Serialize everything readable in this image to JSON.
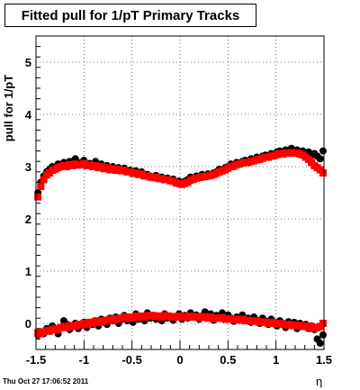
{
  "title": "Fitted pull for 1/pT  Primary Tracks",
  "datestamp": "Thu Oct 27 17:06:52 2011",
  "chart_data": {
    "type": "scatter",
    "title": "Fitted pull for 1/pT  Primary Tracks",
    "xlabel": "η",
    "ylabel": "pull for 1/pT",
    "xlim": [
      -1.5,
      1.5
    ],
    "ylim": [
      -0.5,
      5.5
    ],
    "grid": true,
    "x_ticks": [
      -1.5,
      -1,
      -0.5,
      0,
      0.5,
      1,
      1.5
    ],
    "x_tick_labels": [
      "-1.5",
      "-1",
      "-0.5",
      "0",
      "0.5",
      "1",
      "1.5"
    ],
    "y_ticks": [
      0,
      1,
      2,
      3,
      4,
      5
    ],
    "y_tick_labels": [
      "0",
      "1",
      "2",
      "3",
      "4",
      "5"
    ],
    "series_colors": [
      "#000000",
      "#ff0000"
    ],
    "series": [
      {
        "color": "#000000",
        "x": [
          -1.48,
          -1.45,
          -1.42,
          -1.39,
          -1.36,
          -1.33,
          -1.3,
          -1.27,
          -1.24,
          -1.21,
          -1.18,
          -1.15,
          -1.12,
          -1.09,
          -1.06,
          -1.03,
          -1.0,
          -0.97,
          -0.94,
          -0.91,
          -0.88,
          -0.85,
          -0.82,
          -0.79,
          -0.76,
          -0.73,
          -0.7,
          -0.67,
          -0.64,
          -0.61,
          -0.58,
          -0.55,
          -0.52,
          -0.49,
          -0.46,
          -0.43,
          -0.4,
          -0.37,
          -0.34,
          -0.31,
          -0.28,
          -0.25,
          -0.22,
          -0.19,
          -0.16,
          -0.13,
          -0.1,
          -0.07,
          -0.04,
          -0.01,
          0.02,
          0.05,
          0.08,
          0.11,
          0.14,
          0.17,
          0.2,
          0.23,
          0.26,
          0.29,
          0.32,
          0.35,
          0.38,
          0.41,
          0.44,
          0.47,
          0.5,
          0.53,
          0.56,
          0.59,
          0.62,
          0.65,
          0.68,
          0.71,
          0.74,
          0.77,
          0.8,
          0.83,
          0.86,
          0.89,
          0.92,
          0.95,
          0.98,
          1.01,
          1.04,
          1.07,
          1.1,
          1.13,
          1.16,
          1.19,
          1.22,
          1.25,
          1.28,
          1.31,
          1.34,
          1.37,
          1.4,
          1.43,
          1.46,
          1.49
        ],
        "y": [
          2.5,
          2.7,
          2.82,
          2.9,
          2.95,
          3.0,
          2.98,
          3.05,
          3.02,
          3.08,
          3.05,
          3.1,
          3.04,
          3.15,
          3.06,
          3.08,
          3.12,
          3.04,
          3.06,
          3.02,
          3.1,
          3.0,
          3.05,
          2.98,
          3.02,
          2.96,
          3.0,
          2.95,
          2.98,
          2.94,
          2.97,
          2.9,
          2.93,
          2.88,
          2.92,
          2.86,
          2.9,
          2.84,
          2.85,
          2.82,
          2.8,
          2.83,
          2.78,
          2.8,
          2.76,
          2.78,
          2.74,
          2.76,
          2.7,
          2.72,
          2.68,
          2.72,
          2.75,
          2.8,
          2.78,
          2.82,
          2.8,
          2.85,
          2.82,
          2.86,
          2.84,
          2.88,
          2.9,
          2.95,
          2.92,
          2.98,
          3.0,
          3.05,
          3.02,
          3.08,
          3.05,
          3.1,
          3.12,
          3.08,
          3.15,
          3.12,
          3.18,
          3.15,
          3.2,
          3.22,
          3.18,
          3.25,
          3.22,
          3.28,
          3.3,
          3.26,
          3.32,
          3.28,
          3.35,
          3.3,
          3.32,
          3.28,
          3.3,
          3.25,
          3.28,
          3.22,
          3.25,
          3.2,
          3.15,
          3.3
        ],
        "y_low": [
          -0.22,
          -0.18,
          -0.2,
          -0.1,
          -0.15,
          -0.05,
          -0.12,
          -0.2,
          -0.08,
          0.05,
          -0.02,
          -0.12,
          -0.06,
          0.0,
          -0.1,
          -0.04,
          0.02,
          -0.08,
          0.0,
          -0.02,
          0.05,
          -0.05,
          0.08,
          0.02,
          -0.02,
          0.1,
          0.05,
          0.12,
          0.0,
          0.08,
          0.15,
          0.05,
          0.1,
          0.02,
          0.18,
          0.08,
          0.12,
          0.05,
          0.2,
          0.1,
          0.15,
          0.08,
          0.12,
          0.05,
          0.18,
          0.1,
          0.14,
          0.06,
          0.12,
          0.18,
          0.08,
          0.15,
          0.1,
          0.2,
          0.12,
          0.16,
          0.08,
          0.14,
          0.22,
          0.1,
          0.18,
          0.06,
          0.15,
          0.12,
          0.2,
          0.08,
          0.16,
          0.1,
          0.04,
          0.12,
          0.08,
          0.16,
          0.05,
          0.1,
          0.02,
          0.12,
          0.06,
          0.0,
          0.1,
          0.04,
          -0.02,
          0.08,
          0.02,
          -0.05,
          0.05,
          0.0,
          -0.08,
          0.03,
          -0.04,
          0.02,
          -0.1,
          0.0,
          -0.06,
          -0.02,
          -0.1,
          -0.05,
          -0.12,
          -0.3,
          -0.38,
          -0.22
        ]
      },
      {
        "color": "#ff0000",
        "x": [
          -1.48,
          -1.45,
          -1.42,
          -1.39,
          -1.36,
          -1.33,
          -1.3,
          -1.27,
          -1.24,
          -1.21,
          -1.18,
          -1.15,
          -1.12,
          -1.09,
          -1.06,
          -1.03,
          -1.0,
          -0.97,
          -0.94,
          -0.91,
          -0.88,
          -0.85,
          -0.82,
          -0.79,
          -0.76,
          -0.73,
          -0.7,
          -0.67,
          -0.64,
          -0.61,
          -0.58,
          -0.55,
          -0.52,
          -0.49,
          -0.46,
          -0.43,
          -0.4,
          -0.37,
          -0.34,
          -0.31,
          -0.28,
          -0.25,
          -0.22,
          -0.19,
          -0.16,
          -0.13,
          -0.1,
          -0.07,
          -0.04,
          -0.01,
          0.02,
          0.05,
          0.08,
          0.11,
          0.14,
          0.17,
          0.2,
          0.23,
          0.26,
          0.29,
          0.32,
          0.35,
          0.38,
          0.41,
          0.44,
          0.47,
          0.5,
          0.53,
          0.56,
          0.59,
          0.62,
          0.65,
          0.68,
          0.71,
          0.74,
          0.77,
          0.8,
          0.83,
          0.86,
          0.89,
          0.92,
          0.95,
          0.98,
          1.01,
          1.04,
          1.07,
          1.1,
          1.13,
          1.16,
          1.19,
          1.22,
          1.25,
          1.28,
          1.31,
          1.34,
          1.37,
          1.4,
          1.43,
          1.46,
          1.49
        ],
        "y": [
          2.42,
          2.62,
          2.75,
          2.84,
          2.88,
          2.93,
          2.95,
          2.98,
          3.0,
          3.02,
          3.0,
          3.04,
          3.02,
          3.05,
          3.03,
          3.04,
          3.06,
          3.02,
          3.03,
          3.0,
          3.02,
          2.98,
          3.0,
          2.96,
          2.98,
          2.94,
          2.96,
          2.93,
          2.95,
          2.92,
          2.93,
          2.9,
          2.9,
          2.87,
          2.88,
          2.85,
          2.86,
          2.82,
          2.82,
          2.8,
          2.79,
          2.79,
          2.77,
          2.77,
          2.75,
          2.75,
          2.73,
          2.72,
          2.69,
          2.68,
          2.66,
          2.68,
          2.7,
          2.74,
          2.76,
          2.78,
          2.79,
          2.8,
          2.81,
          2.82,
          2.83,
          2.85,
          2.87,
          2.9,
          2.92,
          2.94,
          2.97,
          3.0,
          3.01,
          3.04,
          3.05,
          3.07,
          3.08,
          3.08,
          3.1,
          3.11,
          3.13,
          3.14,
          3.16,
          3.18,
          3.18,
          3.2,
          3.21,
          3.23,
          3.25,
          3.24,
          3.26,
          3.26,
          3.27,
          3.26,
          3.26,
          3.24,
          3.22,
          3.18,
          3.14,
          3.08,
          3.02,
          2.98,
          2.94,
          2.88
        ],
        "y_low": [
          -0.18,
          -0.2,
          -0.16,
          -0.14,
          -0.15,
          -0.12,
          -0.1,
          -0.12,
          -0.08,
          -0.06,
          -0.08,
          -0.05,
          -0.04,
          -0.06,
          -0.02,
          -0.03,
          0.0,
          -0.02,
          0.02,
          0.0,
          0.04,
          0.02,
          0.05,
          0.04,
          0.06,
          0.08,
          0.06,
          0.09,
          0.08,
          0.1,
          0.12,
          0.1,
          0.12,
          0.11,
          0.14,
          0.12,
          0.14,
          0.12,
          0.15,
          0.14,
          0.15,
          0.13,
          0.14,
          0.12,
          0.15,
          0.14,
          0.13,
          0.12,
          0.13,
          0.14,
          0.12,
          0.13,
          0.12,
          0.14,
          0.12,
          0.13,
          0.11,
          0.12,
          0.13,
          0.1,
          0.12,
          0.09,
          0.1,
          0.1,
          0.11,
          0.08,
          0.09,
          0.08,
          0.07,
          0.08,
          0.06,
          0.08,
          0.05,
          0.06,
          0.04,
          0.05,
          0.04,
          0.02,
          0.03,
          0.02,
          0.0,
          0.02,
          0.0,
          -0.01,
          0.0,
          -0.02,
          -0.03,
          -0.02,
          -0.04,
          -0.03,
          -0.05,
          -0.04,
          -0.06,
          -0.05,
          -0.08,
          -0.06,
          -0.1,
          -0.08,
          -0.06,
          0.0
        ]
      }
    ]
  }
}
